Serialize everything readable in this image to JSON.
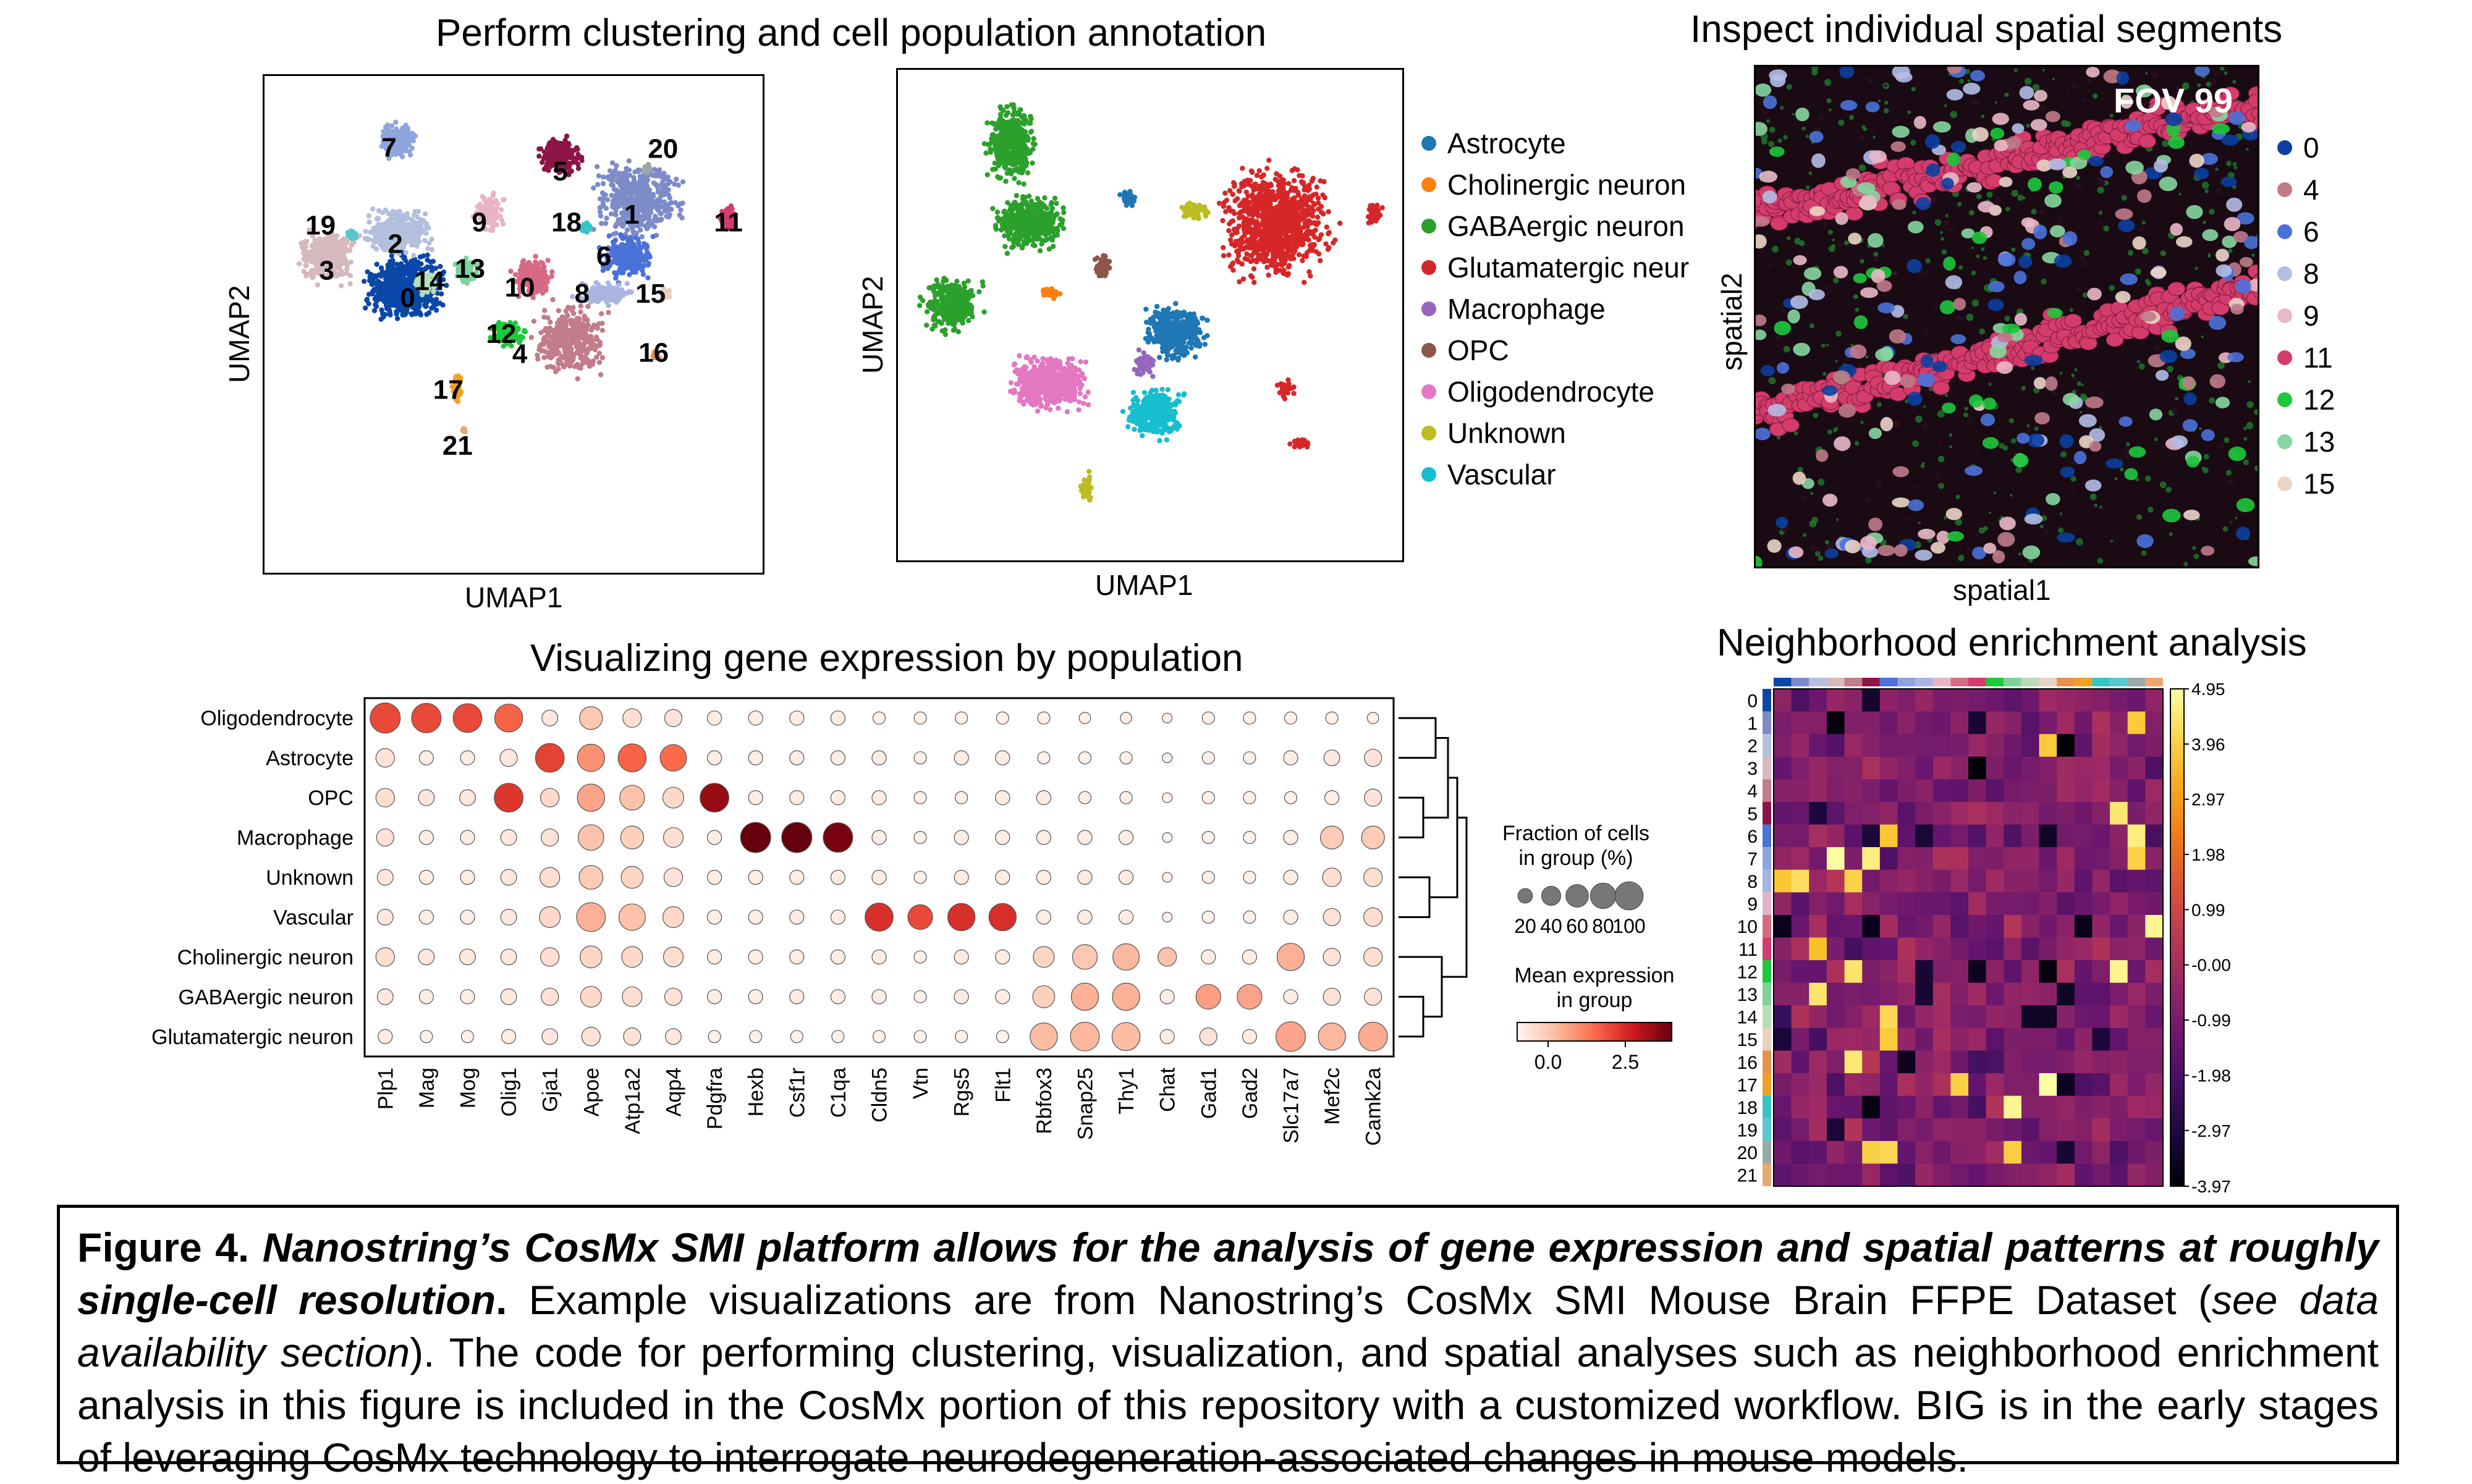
{
  "panels": {
    "clustering_title": "Perform clustering and cell population annotation",
    "spatial_title": "Inspect individual spatial segments",
    "dotplot_title": "Visualizing gene expression by population",
    "neighborhood_title": "Neighborhood enrichment analysis"
  },
  "umap_left": {
    "xlabel": "UMAP1",
    "ylabel": "UMAP2",
    "clusters": [
      {
        "id": "0",
        "color": "#0b47a8"
      },
      {
        "id": "1",
        "color": "#7d8cc8"
      },
      {
        "id": "2",
        "color": "#b3bfdc"
      },
      {
        "id": "3",
        "color": "#d6b8bf"
      },
      {
        "id": "4",
        "color": "#c27c8a"
      },
      {
        "id": "5",
        "color": "#8c1446"
      },
      {
        "id": "6",
        "color": "#4a72d8"
      },
      {
        "id": "7",
        "color": "#8fa4dc"
      },
      {
        "id": "8",
        "color": "#aab4e0"
      },
      {
        "id": "9",
        "color": "#e6b4c6"
      },
      {
        "id": "10",
        "color": "#d66a84"
      },
      {
        "id": "11",
        "color": "#d23c6e"
      },
      {
        "id": "12",
        "color": "#1ec83c"
      },
      {
        "id": "13",
        "color": "#7ed29a"
      },
      {
        "id": "14",
        "color": "#b8dcb8"
      },
      {
        "id": "15",
        "color": "#e8d0c4"
      },
      {
        "id": "16",
        "color": "#e6904c"
      },
      {
        "id": "17",
        "color": "#f0a024"
      },
      {
        "id": "18",
        "color": "#36c4c8"
      },
      {
        "id": "19",
        "color": "#58c8d0"
      },
      {
        "id": "20",
        "color": "#9aa8a8"
      },
      {
        "id": "21",
        "color": "#e8a870"
      }
    ]
  },
  "umap_right": {
    "xlabel": "UMAP1",
    "ylabel": "UMAP2",
    "legend": [
      {
        "label": "Astrocyte",
        "color": "#1f77b4"
      },
      {
        "label": "Cholinergic neuron",
        "color": "#ff7f0e"
      },
      {
        "label": "GABAergic neuron",
        "color": "#2ca02c"
      },
      {
        "label": "Glutamatergic neur",
        "color": "#d62728"
      },
      {
        "label": "Macrophage",
        "color": "#9467bd"
      },
      {
        "label": "OPC",
        "color": "#8c564b"
      },
      {
        "label": "Oligodendrocyte",
        "color": "#e377c2"
      },
      {
        "label": "Unknown",
        "color": "#bcbd22"
      },
      {
        "label": "Vascular",
        "color": "#17becf"
      }
    ]
  },
  "spatial": {
    "fov_label": "FOV 99",
    "xlabel": "spatial1",
    "ylabel": "spatial2",
    "legend": [
      {
        "label": "0",
        "color": "#0b3fa0"
      },
      {
        "label": "4",
        "color": "#c07a88"
      },
      {
        "label": "6",
        "color": "#4a72d8"
      },
      {
        "label": "8",
        "color": "#b3bde6"
      },
      {
        "label": "9",
        "color": "#eab8c8"
      },
      {
        "label": "11",
        "color": "#d43c6c"
      },
      {
        "label": "12",
        "color": "#1ec83c"
      },
      {
        "label": "13",
        "color": "#86d6a0"
      },
      {
        "label": "15",
        "color": "#ecd4c6"
      }
    ]
  },
  "chart_data": [
    {
      "type": "dotplot",
      "title": "Visualizing gene expression by population",
      "groups": [
        "Oligodendrocyte",
        "Astrocyte",
        "OPC",
        "Macrophage",
        "Unknown",
        "Vascular",
        "Cholinergic neuron",
        "GABAergic neuron",
        "Glutamatergic neuron"
      ],
      "genes": [
        "Plp1",
        "Mag",
        "Mog",
        "Olig1",
        "Gja1",
        "Apoe",
        "Atp1a2",
        "Aqp4",
        "Pdgfra",
        "Hexb",
        "Csf1r",
        "C1qa",
        "Cldn5",
        "Vtn",
        "Rgs5",
        "Flt1",
        "Rbfox3",
        "Snap25",
        "Thy1",
        "Chat",
        "Gad1",
        "Gad2",
        "Slc17a7",
        "Mef2c",
        "Camk2a"
      ],
      "fraction_pct": [
        [
          95,
          90,
          85,
          80,
          20,
          50,
          30,
          25,
          15,
          15,
          15,
          15,
          10,
          10,
          10,
          10,
          10,
          8,
          8,
          5,
          10,
          10,
          10,
          10,
          8
        ],
        [
          30,
          15,
          15,
          25,
          85,
          75,
          80,
          70,
          15,
          15,
          15,
          15,
          15,
          10,
          15,
          15,
          10,
          10,
          10,
          5,
          10,
          10,
          15,
          20,
          25
        ],
        [
          30,
          20,
          20,
          85,
          30,
          75,
          60,
          40,
          85,
          15,
          15,
          15,
          15,
          10,
          10,
          15,
          15,
          10,
          10,
          5,
          10,
          10,
          10,
          15,
          25
        ],
        [
          25,
          15,
          15,
          20,
          25,
          65,
          50,
          35,
          15,
          95,
          95,
          90,
          15,
          10,
          15,
          15,
          15,
          15,
          15,
          5,
          10,
          10,
          15,
          50,
          50
        ],
        [
          20,
          15,
          15,
          20,
          35,
          55,
          45,
          30,
          15,
          15,
          15,
          15,
          15,
          10,
          15,
          15,
          15,
          15,
          15,
          5,
          10,
          10,
          15,
          30,
          30
        ],
        [
          20,
          15,
          15,
          20,
          40,
          85,
          70,
          40,
          15,
          15,
          15,
          15,
          80,
          60,
          75,
          75,
          15,
          15,
          15,
          5,
          10,
          10,
          15,
          25,
          30
        ],
        [
          30,
          20,
          20,
          20,
          30,
          45,
          40,
          35,
          15,
          15,
          15,
          15,
          15,
          10,
          15,
          15,
          40,
          60,
          70,
          30,
          15,
          15,
          75,
          25,
          30
        ],
        [
          20,
          15,
          15,
          20,
          25,
          40,
          35,
          25,
          15,
          15,
          15,
          15,
          15,
          10,
          15,
          15,
          45,
          75,
          75,
          15,
          60,
          60,
          15,
          25,
          25
        ],
        [
          15,
          10,
          10,
          15,
          20,
          30,
          25,
          20,
          10,
          10,
          10,
          10,
          10,
          10,
          10,
          10,
          75,
          85,
          80,
          15,
          25,
          15,
          90,
          75,
          85
        ]
      ],
      "mean_expression": [
        [
          3.0,
          3.0,
          3.0,
          2.6,
          0.3,
          1.0,
          0.5,
          0.4,
          0.2,
          0.2,
          0.2,
          0.2,
          0.1,
          0.1,
          0.1,
          0.1,
          0.1,
          0.1,
          0.1,
          0.1,
          0.1,
          0.1,
          0.1,
          0.1,
          0.1
        ],
        [
          0.4,
          0.2,
          0.2,
          0.3,
          3.1,
          1.9,
          2.6,
          2.5,
          0.2,
          0.2,
          0.2,
          0.2,
          0.2,
          0.1,
          0.2,
          0.2,
          0.1,
          0.1,
          0.1,
          0.1,
          0.1,
          0.1,
          0.2,
          0.3,
          0.4
        ],
        [
          0.5,
          0.3,
          0.3,
          3.3,
          0.6,
          1.6,
          1.1,
          0.6,
          4.4,
          0.2,
          0.2,
          0.2,
          0.2,
          0.1,
          0.1,
          0.2,
          0.2,
          0.1,
          0.1,
          0.1,
          0.1,
          0.1,
          0.1,
          0.2,
          0.4
        ],
        [
          0.4,
          0.2,
          0.2,
          0.3,
          0.4,
          1.1,
          0.8,
          0.5,
          0.2,
          5.0,
          5.0,
          4.8,
          0.2,
          0.1,
          0.2,
          0.2,
          0.2,
          0.2,
          0.2,
          0.1,
          0.1,
          0.1,
          0.2,
          0.9,
          0.9
        ],
        [
          0.3,
          0.2,
          0.2,
          0.3,
          0.5,
          0.9,
          0.7,
          0.4,
          0.2,
          0.2,
          0.2,
          0.2,
          0.2,
          0.1,
          0.2,
          0.2,
          0.2,
          0.2,
          0.2,
          0.1,
          0.1,
          0.1,
          0.2,
          0.5,
          0.5
        ],
        [
          0.3,
          0.2,
          0.2,
          0.3,
          0.6,
          1.4,
          1.1,
          0.6,
          0.2,
          0.2,
          0.2,
          0.2,
          3.4,
          3.0,
          3.4,
          3.4,
          0.2,
          0.2,
          0.2,
          0.1,
          0.1,
          0.1,
          0.2,
          0.4,
          0.5
        ],
        [
          0.5,
          0.3,
          0.3,
          0.3,
          0.5,
          0.7,
          0.6,
          0.5,
          0.2,
          0.2,
          0.2,
          0.2,
          0.2,
          0.1,
          0.2,
          0.2,
          0.7,
          1.0,
          1.3,
          1.1,
          0.2,
          0.2,
          1.4,
          0.4,
          0.5
        ],
        [
          0.3,
          0.2,
          0.2,
          0.3,
          0.4,
          0.6,
          0.5,
          0.4,
          0.2,
          0.2,
          0.2,
          0.2,
          0.2,
          0.1,
          0.2,
          0.2,
          0.8,
          1.4,
          1.4,
          0.2,
          1.7,
          1.6,
          0.2,
          0.4,
          0.4
        ],
        [
          0.2,
          0.1,
          0.1,
          0.2,
          0.3,
          0.4,
          0.4,
          0.3,
          0.1,
          0.1,
          0.1,
          0.1,
          0.1,
          0.1,
          0.1,
          0.1,
          1.2,
          1.3,
          1.2,
          0.2,
          0.4,
          0.2,
          1.6,
          1.3,
          1.5
        ]
      ],
      "size_legend": {
        "title": "Fraction of cells\nin group (%)",
        "ticks": [
          "20",
          "40",
          "60",
          "80",
          "100"
        ]
      },
      "color_legend": {
        "title": "Mean expression\nin group",
        "ticks": [
          "0.0",
          "2.5"
        ],
        "colormap": "Reds"
      }
    },
    {
      "type": "heatmap",
      "title": "Neighborhood enrichment analysis",
      "row_labels": [
        "0",
        "1",
        "2",
        "3",
        "4",
        "5",
        "6",
        "7",
        "8",
        "9",
        "10",
        "11",
        "12",
        "13",
        "14",
        "15",
        "16",
        "17",
        "18",
        "19",
        "20",
        "21"
      ],
      "colorbar_ticks": [
        "4.95",
        "3.96",
        "2.97",
        "1.98",
        "0.99",
        "-0.00",
        "-0.99",
        "-1.98",
        "-2.97",
        "-3.97"
      ],
      "vmin": -3.97,
      "vmax": 4.95,
      "colormap": "inferno"
    }
  ],
  "caption": {
    "figure_label": "Figure 4.",
    "bold_title": "Nanostring’s CosMx SMI platform allows for the analysis of gene expression and spatial patterns at roughly single-cell resolution",
    "period": ".",
    "text1": " Example visualizations are from Nanostring’s CosMx SMI Mouse Brain FFPE Dataset (",
    "italic": "see data availability section",
    "text2": "). The code for performing clustering, visualization, and spatial analyses such as neighborhood enrichment analysis in this figure is included in the CosMx portion of this repository with a customized workflow. BIG is in the early stages of leveraging CosMx technology to interrogate neurodegeneration-associated changes in mouse models."
  }
}
